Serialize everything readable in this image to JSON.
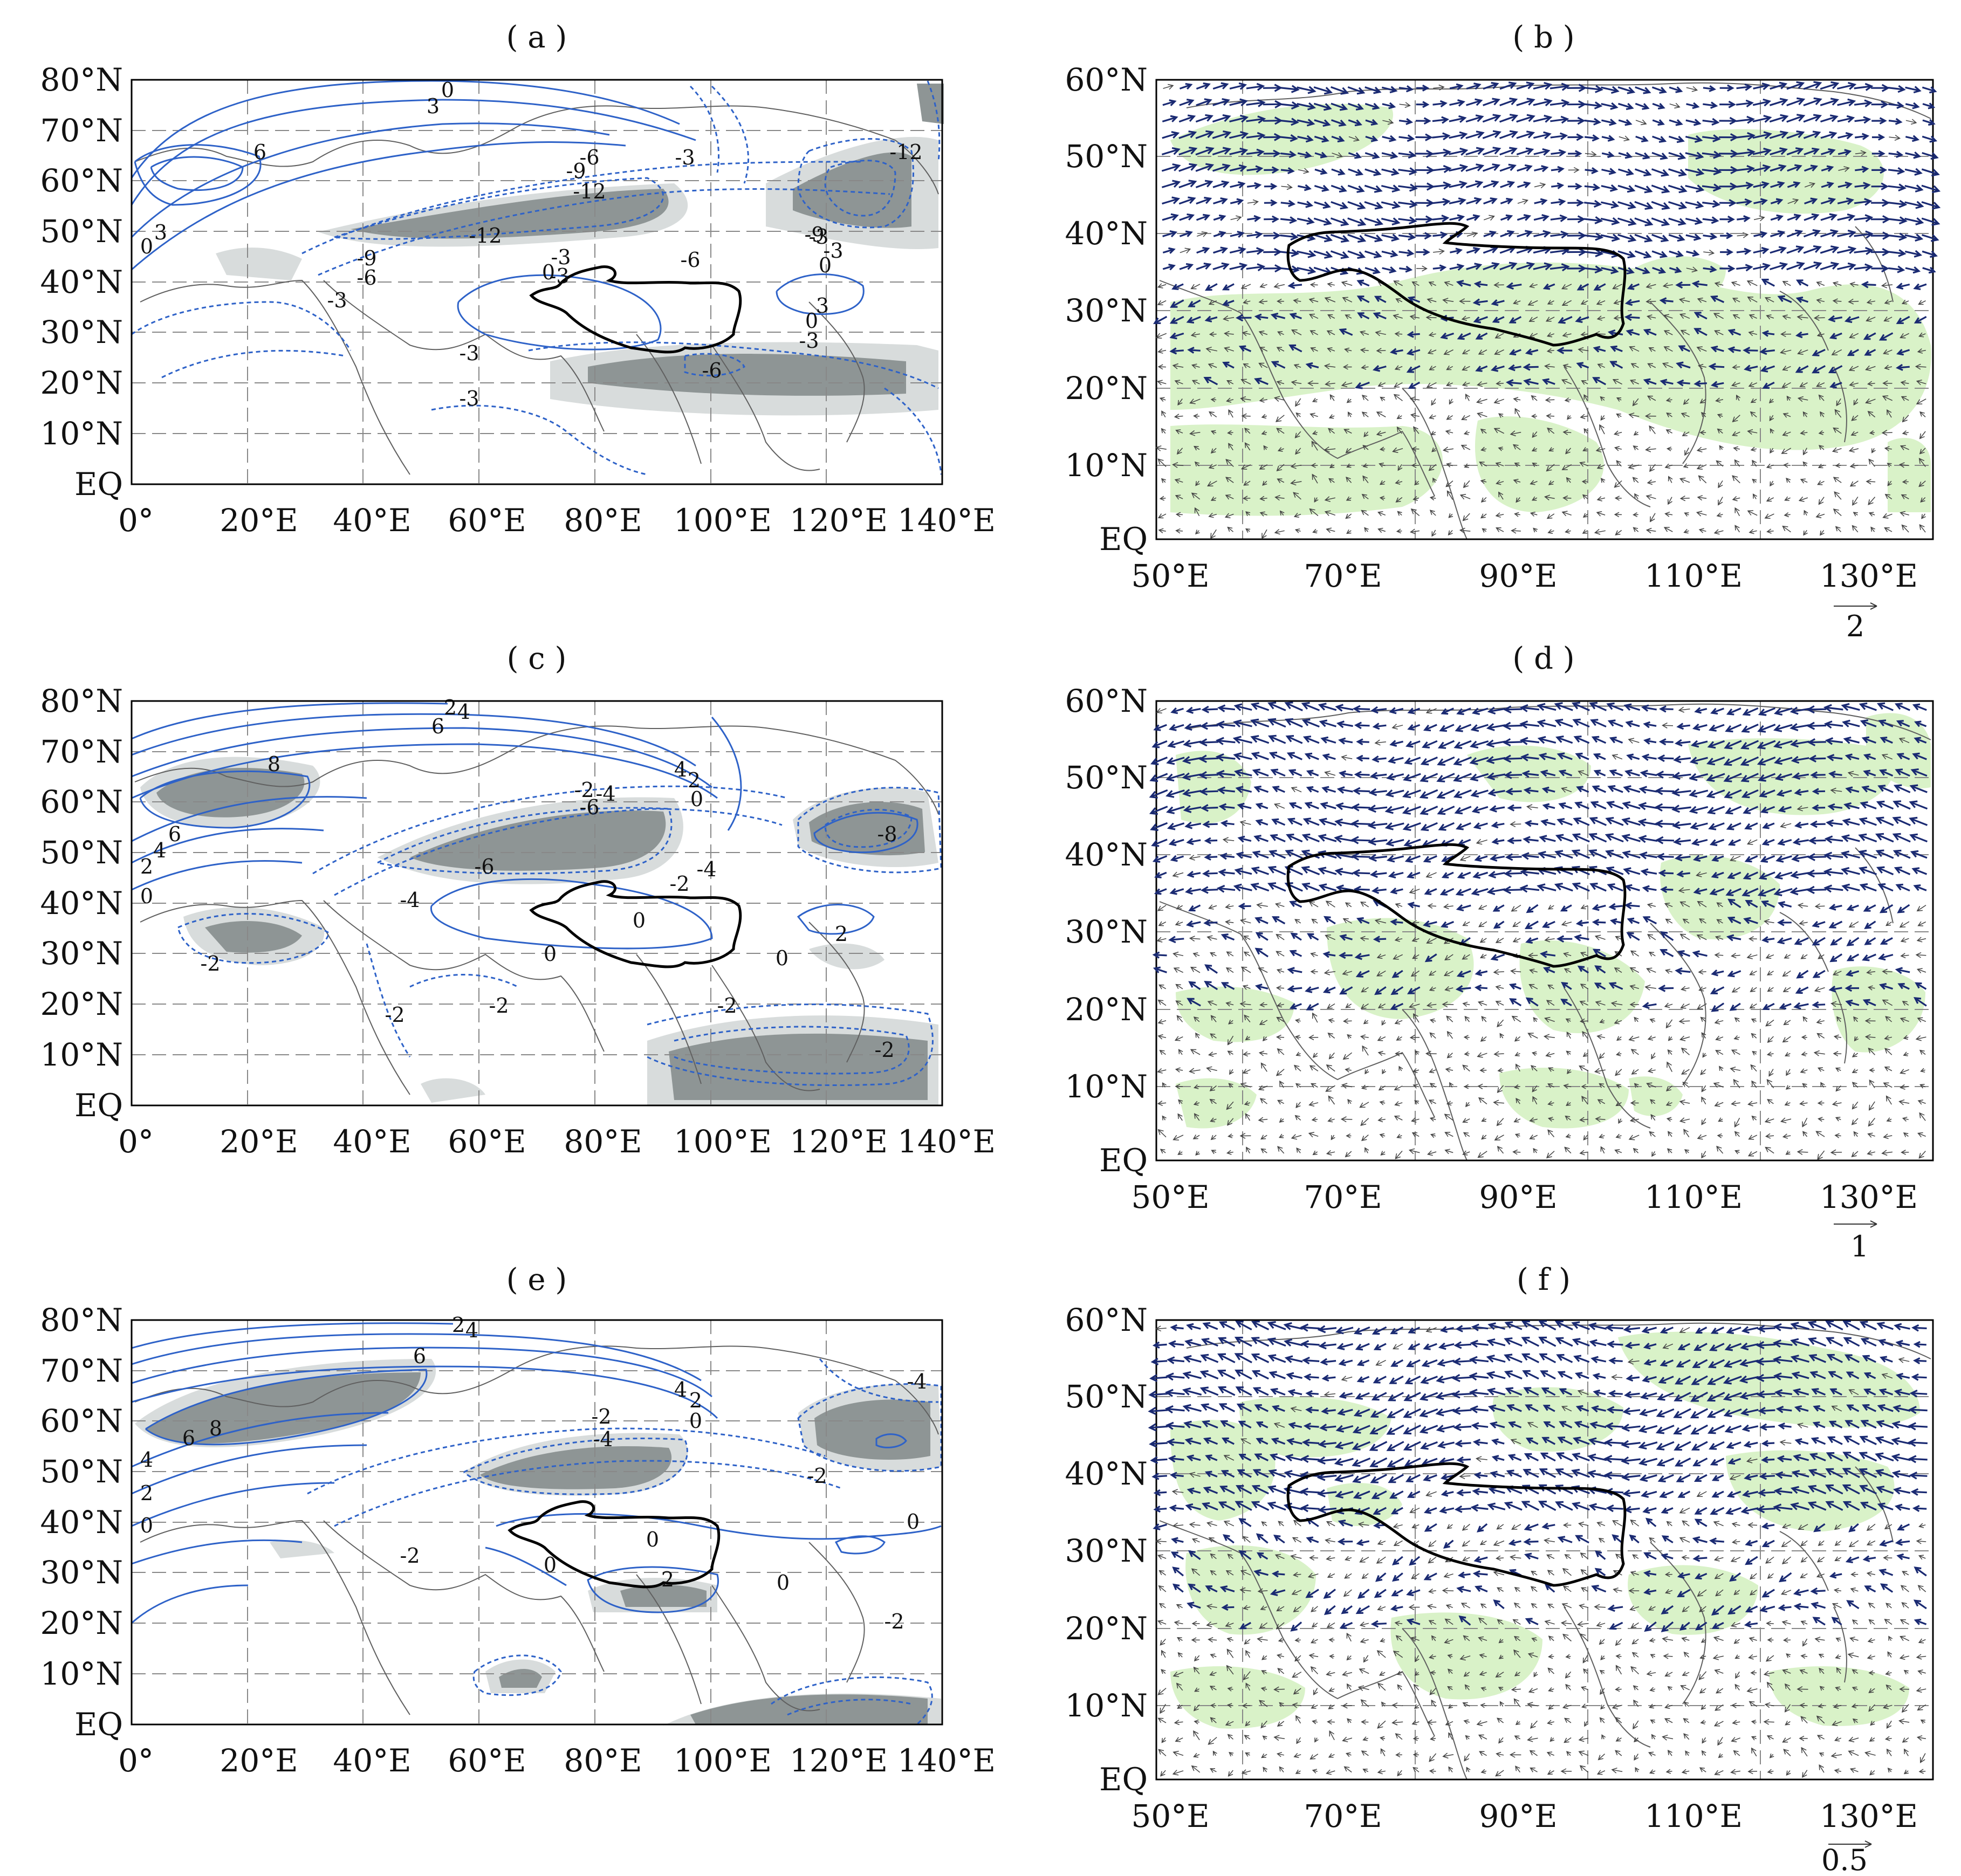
{
  "colors": {
    "contour": "#2e62c8",
    "shade_light": "#d8dcdc",
    "shade_dark": "#8e9595",
    "vector_sig": "#1a2a72",
    "vector_ns": "#444444",
    "land_green": "#d9f2c8",
    "coast": "#606060",
    "plateau": "#000000"
  },
  "panels": {
    "a": {
      "title": "( a )",
      "x_ticks": [
        "0°",
        "20°E",
        "40°E",
        "60°E",
        "80°E",
        "100°E",
        "120°E",
        "140°E"
      ],
      "y_ticks": [
        "80°N",
        "70°N",
        "60°N",
        "50°N",
        "40°N",
        "30°N",
        "20°N",
        "10°N",
        "EQ"
      ],
      "labels": [
        "0",
        "3",
        "6",
        "0",
        "3",
        "-3",
        "-6",
        "-9",
        "-12",
        "-12",
        "-9",
        "-6",
        "-3",
        "0",
        "-3",
        "-3",
        "-6",
        "-9",
        "-3",
        "0",
        "3",
        "0",
        "-3",
        "-3",
        "-3",
        "-12",
        "-6",
        "-3"
      ]
    },
    "b": {
      "title": "( b )",
      "x_ticks": [
        "50°E",
        "70°E",
        "90°E",
        "110°E",
        "130°E"
      ],
      "y_ticks": [
        "60°N",
        "50°N",
        "40°N",
        "30°N",
        "20°N",
        "10°N",
        "EQ"
      ],
      "ref_vector": "2"
    },
    "c": {
      "title": "( c )",
      "x_ticks": [
        "0°",
        "20°E",
        "40°E",
        "60°E",
        "80°E",
        "100°E",
        "120°E",
        "140°E"
      ],
      "y_ticks": [
        "80°N",
        "70°N",
        "60°N",
        "50°N",
        "40°N",
        "30°N",
        "20°N",
        "10°N",
        "EQ"
      ],
      "labels": [
        "2",
        "4",
        "6",
        "8",
        "6",
        "4",
        "2",
        "0",
        "-2",
        "-4",
        "-6",
        "4",
        "2",
        "0",
        "-8",
        "-6",
        "-4",
        "-2",
        "-4",
        "0",
        "0",
        "0",
        "2",
        "-2",
        "-2",
        "-2",
        "-2",
        "-2"
      ]
    },
    "d": {
      "title": "( d )",
      "x_ticks": [
        "50°E",
        "70°E",
        "90°E",
        "110°E",
        "130°E"
      ],
      "y_ticks": [
        "60°N",
        "50°N",
        "40°N",
        "30°N",
        "20°N",
        "10°N",
        "EQ"
      ],
      "ref_vector": "1"
    },
    "e": {
      "title": "( e )",
      "x_ticks": [
        "0°",
        "20°E",
        "40°E",
        "60°E",
        "80°E",
        "100°E",
        "120°E",
        "140°E"
      ],
      "y_ticks": [
        "80°N",
        "70°N",
        "60°N",
        "50°N",
        "40°N",
        "30°N",
        "20°N",
        "10°N",
        "EQ"
      ],
      "labels": [
        "2",
        "4",
        "6",
        "8",
        "6",
        "4",
        "2",
        "-4",
        "4",
        "2",
        "0",
        "-2",
        "-4",
        "-2",
        "0",
        "0",
        "0",
        "2",
        "0",
        "-2",
        "-2",
        "0"
      ]
    },
    "f": {
      "title": "( f )",
      "x_ticks": [
        "50°E",
        "70°E",
        "90°E",
        "110°E",
        "130°E"
      ],
      "y_ticks": [
        "60°N",
        "50°N",
        "40°N",
        "30°N",
        "20°N",
        "10°N",
        "EQ"
      ],
      "ref_vector": "0.5"
    }
  }
}
